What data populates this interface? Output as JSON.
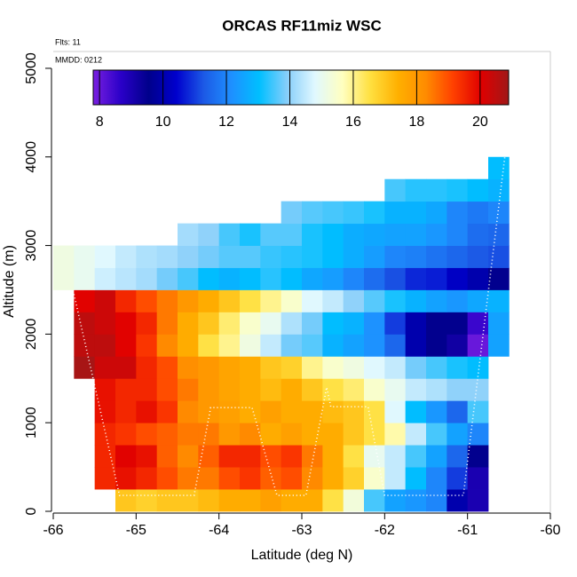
{
  "chart_data": {
    "type": "heatmap",
    "title": "ORCAS RF11miz WSC",
    "annotations": [
      "Flts: 11",
      "MMDD: 0212"
    ],
    "x_label": "Latitude (deg N)",
    "y_label": "Altitude (m)",
    "xlim": [
      -66,
      -60
    ],
    "xticks": [
      -66,
      -65,
      -64,
      -63,
      -62,
      -61,
      -60
    ],
    "ylim": [
      0,
      5200
    ],
    "yticks": [
      0,
      1000,
      2000,
      3000,
      4000,
      5000
    ],
    "xbins": [
      -66,
      -65.75,
      -65.5,
      -65.25,
      -65,
      -64.75,
      -64.5,
      -64.25,
      -64,
      -63.75,
      -63.5,
      -63.25,
      -63,
      -62.75,
      -62.5,
      -62.25,
      -62,
      -61.75,
      -61.5,
      -61.25,
      -61,
      -60.75,
      -60.5
    ],
    "ybins": [
      0,
      250,
      500,
      750,
      1000,
      1250,
      1500,
      1750,
      2000,
      2250,
      2500,
      2750,
      3000,
      3250,
      3500,
      3750,
      4000
    ],
    "values": [
      [
        null,
        null,
        null,
        17,
        16.8,
        17,
        17,
        17.2,
        17.5,
        17.5,
        17.8,
        17.5,
        17.5,
        16.5,
        15.3,
        13.5,
        12.5,
        12.3,
        12,
        10,
        9,
        null
      ],
      [
        null,
        null,
        19.5,
        19.8,
        19.5,
        19,
        18.5,
        18.5,
        19,
        19.3,
        18.8,
        19,
        18.3,
        17.5,
        16.8,
        15.5,
        14.5,
        13,
        12,
        11,
        9,
        null
      ],
      [
        null,
        null,
        19.5,
        20,
        19.8,
        18.8,
        18.3,
        18.8,
        19.5,
        19.5,
        19,
        19.3,
        18.5,
        17.5,
        16.5,
        15,
        14.5,
        13.5,
        12.5,
        11.5,
        9.5,
        null
      ],
      [
        null,
        null,
        19.5,
        19.3,
        19,
        18.8,
        18.5,
        18.5,
        18,
        18.3,
        17.5,
        17.8,
        17.5,
        17.5,
        17,
        16.5,
        15.8,
        14.5,
        13.5,
        12.5,
        12,
        null
      ],
      [
        null,
        null,
        19.8,
        19.5,
        19.8,
        19.3,
        18.3,
        18,
        17.8,
        17.5,
        17.8,
        17.5,
        17.5,
        17.2,
        17,
        16.5,
        14.8,
        13,
        12.3,
        11.5,
        13.5,
        null
      ],
      [
        null,
        null,
        19.8,
        19.5,
        19.5,
        19,
        18.5,
        18,
        17.7,
        17.5,
        17.2,
        17.5,
        17,
        16.5,
        16.2,
        15.5,
        15,
        14.5,
        14.3,
        14,
        14,
        null
      ],
      [
        null,
        20.8,
        20.3,
        20.3,
        19.5,
        19,
        18.2,
        18,
        17.7,
        17.5,
        17,
        16.8,
        16,
        15.5,
        15.2,
        14.8,
        14.5,
        13.8,
        13.5,
        13.2,
        13,
        null
      ],
      [
        null,
        20.5,
        20.5,
        20,
        19.3,
        18.3,
        17.5,
        16.5,
        16,
        15.2,
        14.5,
        13.8,
        13.6,
        12.8,
        12.5,
        12.2,
        11.5,
        10,
        9.5,
        9.2,
        8,
        12.5
      ],
      [
        null,
        20.5,
        20.3,
        20,
        19.5,
        18.5,
        17.5,
        17,
        16.2,
        15.5,
        15,
        14.3,
        13.8,
        13,
        12.8,
        12.2,
        11,
        10,
        9.5,
        9.5,
        8.5,
        12.5
      ],
      [
        null,
        20,
        20.3,
        19.5,
        19,
        18.5,
        18,
        17.5,
        17,
        16.5,
        16,
        15.5,
        14.8,
        14.5,
        14,
        13.6,
        13.2,
        12.8,
        12.5,
        12.3,
        12.6,
        12.8
      ],
      [
        15.2,
        15,
        14.6,
        14.4,
        14.2,
        13.8,
        13.5,
        13,
        12.8,
        13,
        13.3,
        13,
        12.6,
        12.4,
        12,
        11.6,
        11.2,
        10.8,
        10.7,
        10.3,
        10,
        9.5
      ],
      [
        15.2,
        15,
        14.8,
        14.5,
        14.3,
        14.2,
        14,
        13.8,
        13.6,
        13.6,
        13.4,
        13.3,
        13.2,
        13,
        12.7,
        12.4,
        12,
        11.9,
        11.7,
        11.5,
        11.3,
        11.2
      ],
      [
        null,
        null,
        null,
        null,
        null,
        null,
        14.2,
        14,
        13.5,
        13.2,
        13.6,
        13.6,
        13.2,
        13,
        12.7,
        12.6,
        12.5,
        12.5,
        12.3,
        12,
        11.6,
        11.5
      ],
      [
        null,
        null,
        null,
        null,
        null,
        null,
        null,
        null,
        null,
        null,
        null,
        13.8,
        13.6,
        13.5,
        13.4,
        13.2,
        12.8,
        12.8,
        12.6,
        12,
        11.8,
        12
      ],
      [
        null,
        null,
        null,
        null,
        null,
        null,
        null,
        null,
        null,
        null,
        null,
        null,
        null,
        null,
        null,
        null,
        13.5,
        13.3,
        13.3,
        13.2,
        13,
        12.8
      ],
      [
        null,
        null,
        null,
        null,
        null,
        null,
        null,
        null,
        null,
        null,
        null,
        null,
        null,
        null,
        null,
        null,
        null,
        null,
        null,
        null,
        null,
        13
      ]
    ],
    "clim": [
      7.8,
      20.9
    ],
    "cticks": [
      8,
      10,
      12,
      14,
      16,
      18,
      20
    ],
    "colors": [
      "#7a1fe0",
      "#2a00c8",
      "#00008b",
      "#0000cd",
      "#1c5ae6",
      "#1e90ff",
      "#00bfff",
      "#87cefa",
      "#e0f8ff",
      "#ffffc0",
      "#ffe040",
      "#ffb000",
      "#ff8c00",
      "#ff4000",
      "#e00000",
      "#a01818"
    ],
    "track": {
      "color": "#ffffff",
      "x": [
        -65.75,
        -65.2,
        -64.3,
        -64.1,
        -63.6,
        -63.3,
        -62.95,
        -62.7,
        -62.65,
        -62.2,
        -62.0,
        -61.05,
        -60.55
      ],
      "y": [
        2450,
        180,
        180,
        1170,
        1170,
        180,
        180,
        1400,
        1180,
        1180,
        180,
        180,
        4000
      ]
    }
  }
}
